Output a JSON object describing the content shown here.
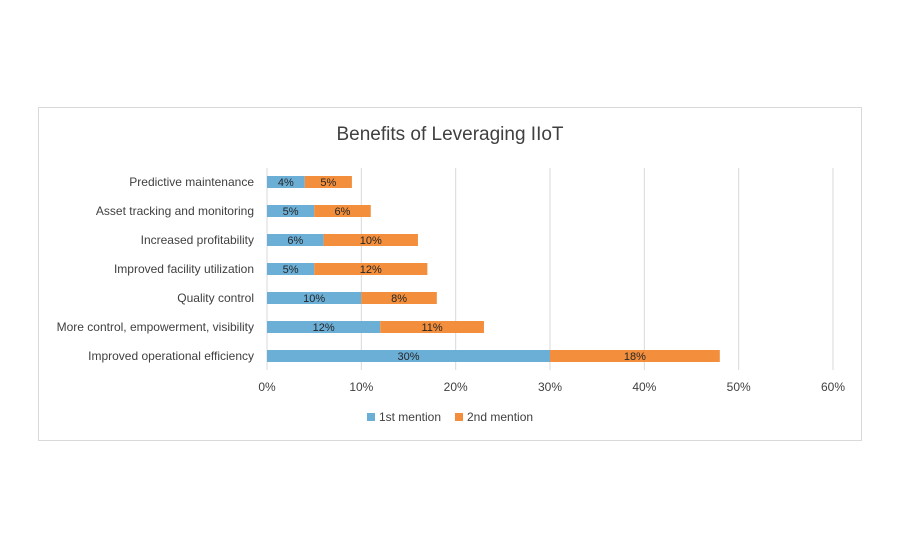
{
  "chart_data": {
    "type": "bar",
    "orientation": "horizontal",
    "stacked": true,
    "title": "Benefits of Leveraging IIoT",
    "categories": [
      "Predictive maintenance",
      "Asset tracking and monitoring",
      "Increased profitability",
      "Improved facility utilization",
      "Quality control",
      "More control, empowerment, visibility",
      "Improved operational efficiency"
    ],
    "series": [
      {
        "name": "1st mention",
        "values": [
          4,
          5,
          6,
          5,
          10,
          12,
          30
        ],
        "labels": [
          "4%",
          "5%",
          "6%",
          "5%",
          "10%",
          "12%",
          "30%"
        ],
        "color": "#6baed6"
      },
      {
        "name": "2nd mention",
        "values": [
          5,
          6,
          10,
          12,
          8,
          11,
          18
        ],
        "labels": [
          "5%",
          "6%",
          "10%",
          "12%",
          "8%",
          "11%",
          "18%"
        ],
        "color": "#f28e3c"
      }
    ],
    "xlim": [
      0,
      60
    ],
    "xticks": [
      "0%",
      "10%",
      "20%",
      "30%",
      "40%",
      "50%",
      "60%"
    ],
    "grid": true,
    "legend_position": "bottom"
  }
}
